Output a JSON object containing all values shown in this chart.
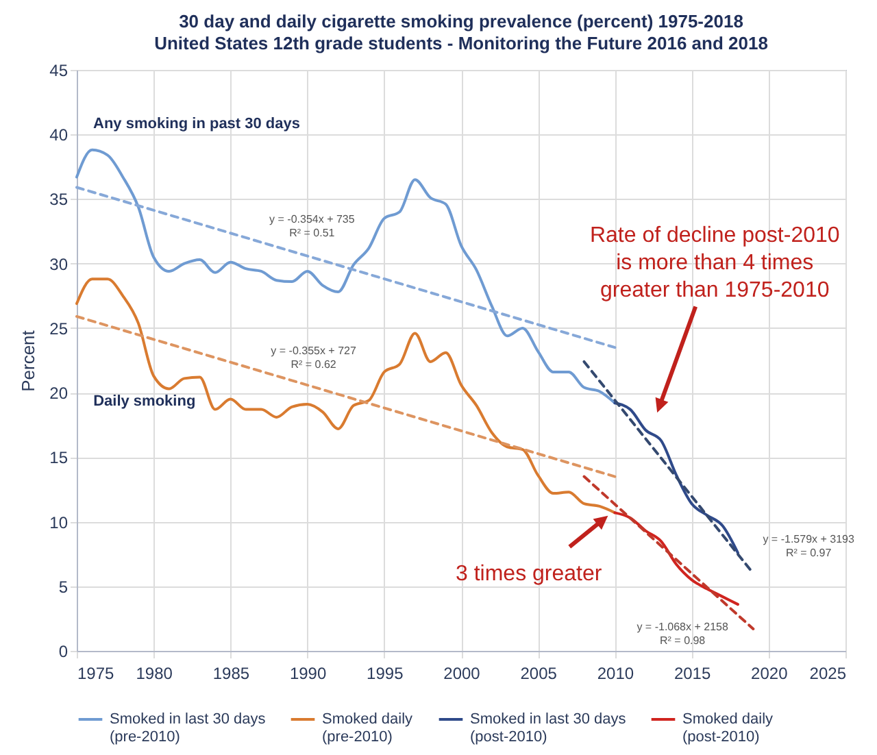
{
  "chart_data": {
    "type": "line",
    "title": "30 day and daily cigarette smoking prevalence (percent) 1975-2018",
    "subtitle": "United States 12th grade students - Monitoring the Future 2016 and 2018",
    "ylabel": "Percent",
    "xlim": [
      1975,
      2025
    ],
    "xticks": [
      1975,
      1980,
      1985,
      1990,
      1995,
      2000,
      2005,
      2010,
      2015,
      2020,
      2025
    ],
    "ylim": [
      0,
      45
    ],
    "yticks": [
      0,
      5,
      10,
      15,
      20,
      25,
      30,
      35,
      40,
      45
    ],
    "grid": true,
    "legend": "bottom",
    "marker": "none",
    "line_style": "solid",
    "series": [
      {
        "name": "Smoked in last 30 days (pre-2010)",
        "color": "#6f9bd2",
        "x": [
          1975,
          1976,
          1977,
          1978,
          1979,
          1980,
          1981,
          1982,
          1983,
          1984,
          1985,
          1986,
          1987,
          1988,
          1989,
          1990,
          1991,
          1992,
          1993,
          1994,
          1995,
          1996,
          1997,
          1998,
          1999,
          2000,
          2001,
          2002,
          2003,
          2004,
          2005,
          2006,
          2007,
          2008,
          2009,
          2010
        ],
        "values": [
          36.7,
          38.8,
          38.4,
          36.7,
          34.4,
          30.5,
          29.4,
          30.0,
          30.3,
          29.3,
          30.1,
          29.6,
          29.4,
          28.7,
          28.6,
          29.4,
          28.3,
          27.8,
          29.9,
          31.2,
          33.5,
          34.0,
          36.5,
          35.1,
          34.6,
          31.4,
          29.5,
          26.7,
          24.4,
          25.0,
          23.2,
          21.6,
          21.6,
          20.4,
          20.1,
          19.2
        ]
      },
      {
        "name": "Smoked daily (pre-2010)",
        "color": "#d97b30",
        "x": [
          1975,
          1976,
          1977,
          1978,
          1979,
          1980,
          1981,
          1982,
          1983,
          1984,
          1985,
          1986,
          1987,
          1988,
          1989,
          1990,
          1991,
          1992,
          1993,
          1994,
          1995,
          1996,
          1997,
          1998,
          1999,
          2000,
          2001,
          2002,
          2003,
          2004,
          2005,
          2006,
          2007,
          2008,
          2009,
          2010
        ],
        "values": [
          26.9,
          28.8,
          28.8,
          27.5,
          25.4,
          21.3,
          20.3,
          21.1,
          21.2,
          18.7,
          19.5,
          18.7,
          18.7,
          18.1,
          18.9,
          19.1,
          18.5,
          17.2,
          19.0,
          19.4,
          21.6,
          22.2,
          24.6,
          22.4,
          23.1,
          20.6,
          19.0,
          16.9,
          15.8,
          15.6,
          13.6,
          12.2,
          12.3,
          11.4,
          11.2,
          10.7
        ]
      },
      {
        "name": "Smoked in last 30 days (post-2010)",
        "color": "#2f4a8a",
        "x": [
          2010,
          2011,
          2012,
          2013,
          2014,
          2015,
          2016,
          2017,
          2018
        ],
        "values": [
          19.2,
          18.7,
          17.1,
          16.3,
          13.6,
          11.4,
          10.5,
          9.7,
          7.6
        ]
      },
      {
        "name": "Smoked daily (post-2010)",
        "color": "#d0241f",
        "x": [
          2010,
          2011,
          2012,
          2013,
          2014,
          2015,
          2016,
          2017,
          2018
        ],
        "values": [
          10.7,
          10.3,
          9.3,
          8.5,
          6.7,
          5.5,
          4.8,
          4.2,
          3.6
        ]
      },
      {
        "color": "#86a8d8",
        "line_style": "dashed",
        "x": [
          1975,
          2010
        ],
        "values": [
          35.9,
          23.5
        ]
      },
      {
        "color": "#dd9460",
        "line_style": "dashed",
        "x": [
          1975,
          2010
        ],
        "values": [
          25.9,
          13.5
        ]
      },
      {
        "color": "#34496f",
        "line_style": "dashed",
        "x": [
          2008,
          2019
        ],
        "values": [
          22.4,
          6.0
        ]
      },
      {
        "color": "#c0392b",
        "line_style": "dashed",
        "x": [
          2008,
          2019
        ],
        "values": [
          13.5,
          1.7
        ]
      }
    ],
    "annotations": [
      "Any smoking in past 30 days",
      "Daily smoking",
      "y = -0.354x + 735\nR² = 0.51",
      "y = -0.355x + 727\nR² = 0.62",
      "y = -1.579x + 3193\nR² = 0.97",
      "y = -1.068x + 2158\nR² = 0.98",
      "Rate of decline post-2010\nis more than 4 times\ngreater than 1975-2010",
      "3 times greater"
    ]
  }
}
